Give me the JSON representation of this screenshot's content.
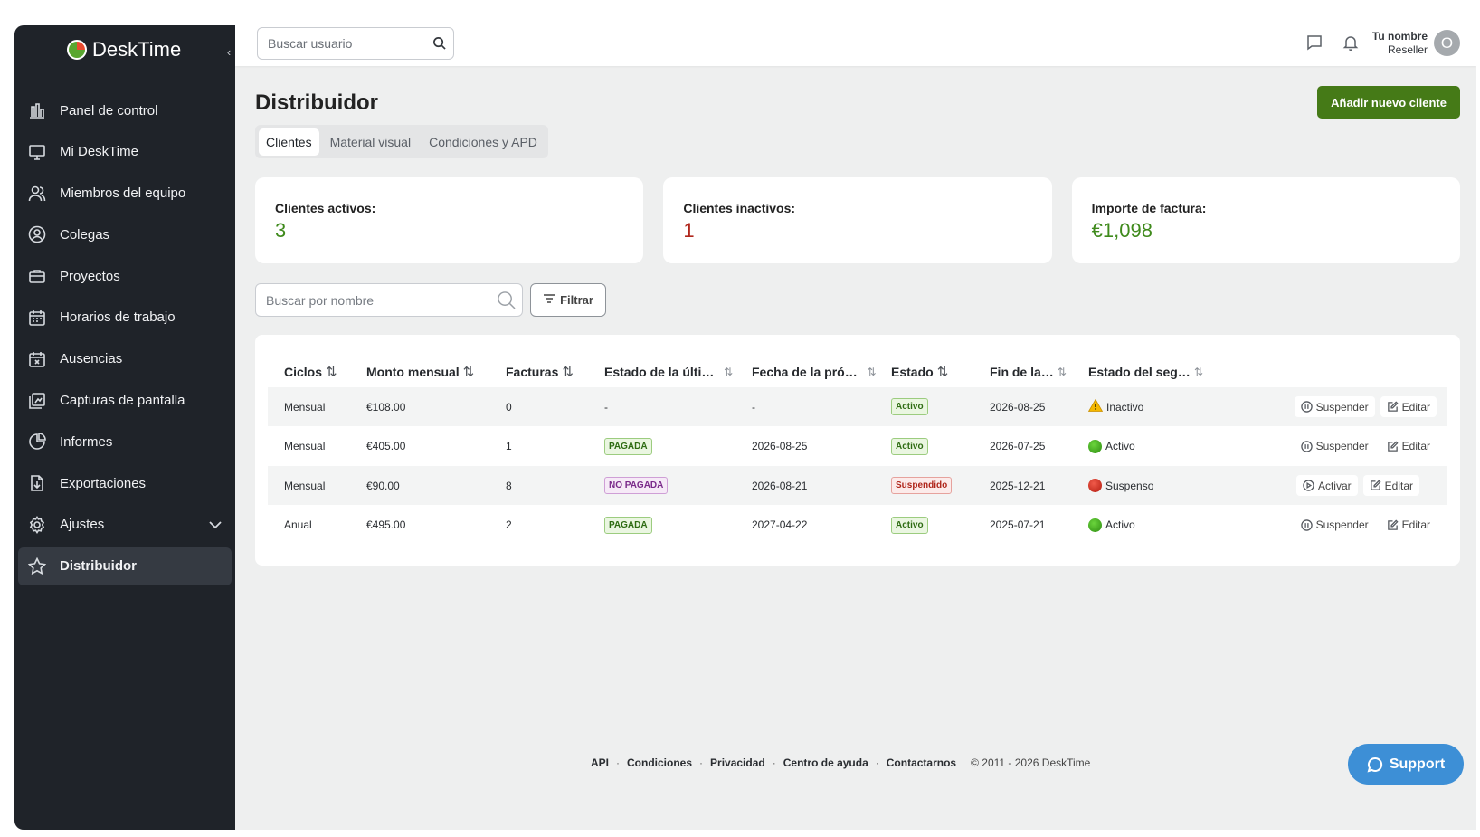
{
  "app": {
    "name": "DeskTime"
  },
  "sidebar": {
    "items": [
      {
        "label": "Panel de control",
        "icon": "bar-chart-icon"
      },
      {
        "label": "Mi DeskTime",
        "icon": "monitor-icon"
      },
      {
        "label": "Miembros del equipo",
        "icon": "team-icon"
      },
      {
        "label": "Colegas",
        "icon": "user-circle-icon"
      },
      {
        "label": "Proyectos",
        "icon": "briefcase-icon"
      },
      {
        "label": "Horarios de trabajo",
        "icon": "calendar-icon"
      },
      {
        "label": "Ausencias",
        "icon": "calendar-x-icon"
      },
      {
        "label": "Capturas de pantalla",
        "icon": "screenshot-icon"
      },
      {
        "label": "Informes",
        "icon": "pie-chart-icon"
      },
      {
        "label": "Exportaciones",
        "icon": "export-icon"
      },
      {
        "label": "Ajustes",
        "icon": "gear-icon"
      },
      {
        "label": "Distribuidor",
        "icon": "star-icon"
      }
    ]
  },
  "topbar": {
    "search_placeholder": "Buscar usuario",
    "user_name": "Tu nombre",
    "user_role": "Reseller",
    "avatar_initial": "O"
  },
  "page": {
    "title": "Distribuidor",
    "add_button": "Añadir nuevo cliente",
    "tabs": [
      "Clientes",
      "Material visual",
      "Condiciones y APD"
    ],
    "active_tab": "Clientes"
  },
  "stats": {
    "active_label": "Clientes activos:",
    "active_value": "3",
    "inactive_label": "Clientes inactivos:",
    "inactive_value": "1",
    "invoice_label": "Importe de factura:",
    "invoice_value": "€1,098"
  },
  "filters": {
    "search_placeholder": "Buscar por nombre",
    "filter_label": "Filtrar"
  },
  "table": {
    "headers": [
      "Ciclos",
      "Monto mensual",
      "Facturas",
      "Estado de la últi…",
      "Fecha de la pró…",
      "Estado",
      "Fin de la…",
      "Estado del seg…"
    ],
    "rows": [
      {
        "cycle": "Mensual",
        "amount": "€108.00",
        "invoices": "0",
        "last_status": "-",
        "next_date": "-",
        "status": "Activo",
        "end": "2026-08-25",
        "seg": "Inactivo",
        "action": "Suspender",
        "edit": "Editar"
      },
      {
        "cycle": "Mensual",
        "amount": "€405.00",
        "invoices": "1",
        "last_status": "PAGADA",
        "next_date": "2026-08-25",
        "status": "Activo",
        "end": "2026-07-25",
        "seg": "Activo",
        "action": "Suspender",
        "edit": "Editar"
      },
      {
        "cycle": "Mensual",
        "amount": "€90.00",
        "invoices": "8",
        "last_status": "NO PAGADA",
        "next_date": "2026-08-21",
        "status": "Suspendido",
        "end": "2025-12-21",
        "seg": "Suspenso",
        "action": "Activar",
        "edit": "Editar"
      },
      {
        "cycle": "Anual",
        "amount": "€495.00",
        "invoices": "2",
        "last_status": "PAGADA",
        "next_date": "2027-04-22",
        "status": "Activo",
        "end": "2025-07-21",
        "seg": "Activo",
        "action": "Suspender",
        "edit": "Editar"
      }
    ]
  },
  "footer": {
    "links": [
      "API",
      "Condiciones",
      "Privacidad",
      "Centro de ayuda",
      "Contactarnos"
    ],
    "copyright": "© 2011 - 2026 DeskTime"
  },
  "support": {
    "label": "Support"
  },
  "colors": {
    "accent_green": "#457a17",
    "sidebar_bg": "#1f2329",
    "support_blue": "#3d8fd6"
  }
}
